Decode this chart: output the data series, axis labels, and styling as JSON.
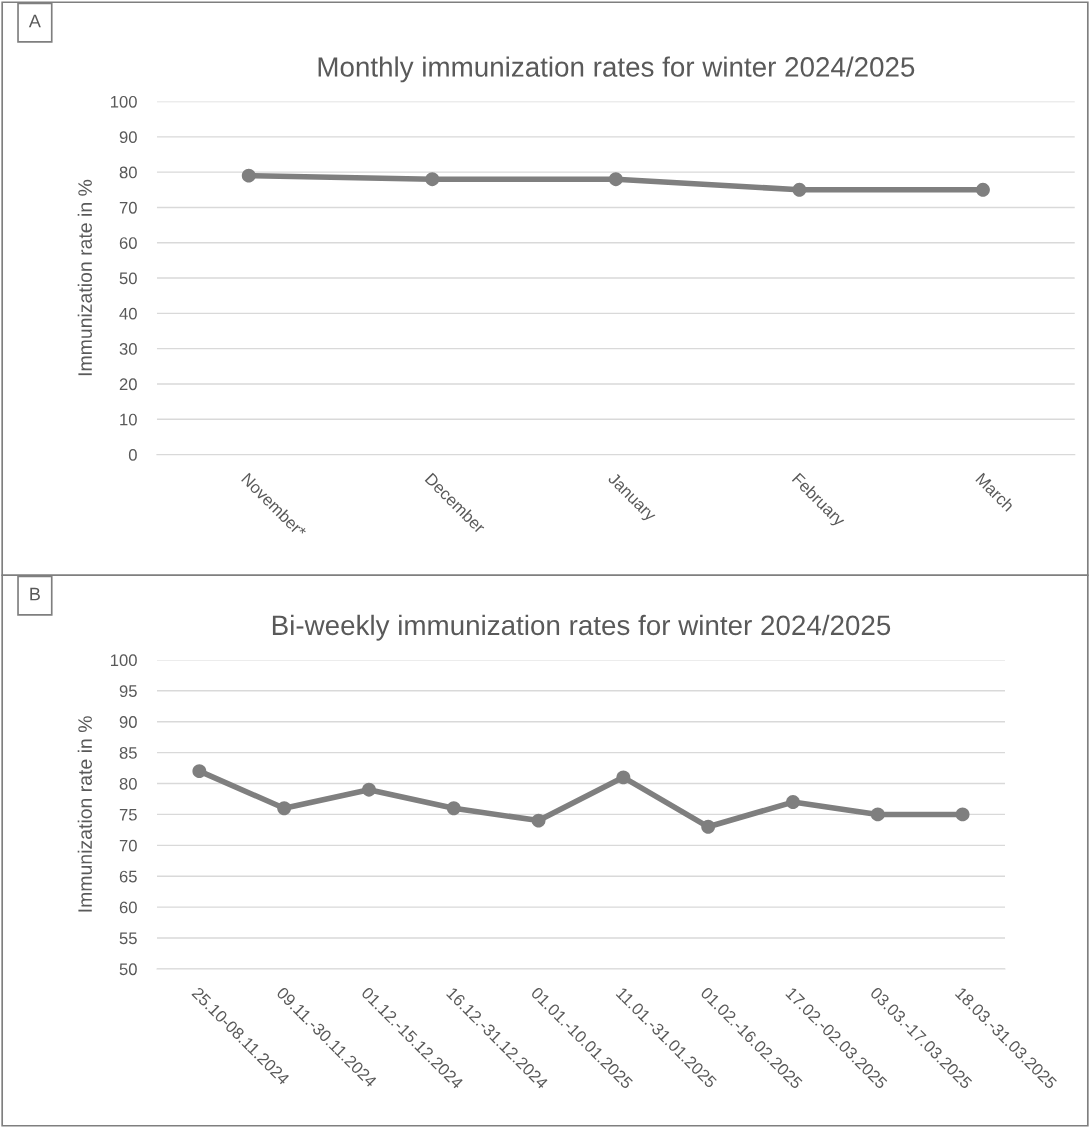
{
  "chart_data": [
    {
      "type": "line",
      "title": "Monthly immunization rates for winter 2024/2025",
      "ylabel": "Immunization rate in %",
      "annotations": [
        "A"
      ],
      "categories": [
        "November*",
        "December",
        "January",
        "February",
        "March"
      ],
      "series": [
        {
          "color": "#7f7f7f",
          "values": [
            79,
            78,
            78,
            75,
            75
          ]
        }
      ],
      "ylim": [
        0,
        100
      ],
      "yticks": [
        0,
        10,
        20,
        30,
        40,
        50,
        60,
        70,
        80,
        90,
        100
      ],
      "grid": "y",
      "legend": false,
      "marker": "circle",
      "line_style": "solid"
    },
    {
      "type": "line",
      "title": "Bi-weekly immunization rates for winter 2024/2025",
      "ylabel": "Immunization rate in %",
      "annotations": [
        "B"
      ],
      "categories": [
        "25.10-08.11.2024",
        "09.11.-30.11.2024",
        "01.12.-15.12.2024",
        "16.12.-31.12.2024",
        "01.01.-10.01.2025",
        "11.01.-31.01.2025",
        "01.02.-16.02.2025",
        "17.02.-02.03.2025",
        "03.03.-17.03.2025",
        "18.03.-31.03.2025"
      ],
      "series": [
        {
          "color": "#7f7f7f",
          "values": [
            82,
            76,
            79,
            76,
            74,
            81,
            73,
            77,
            75,
            75
          ]
        }
      ],
      "ylim": [
        50,
        100
      ],
      "yticks": [
        50,
        55,
        60,
        65,
        70,
        75,
        80,
        85,
        90,
        95,
        100
      ],
      "grid": "y",
      "legend": false,
      "marker": "circle",
      "line_style": "solid"
    }
  ]
}
